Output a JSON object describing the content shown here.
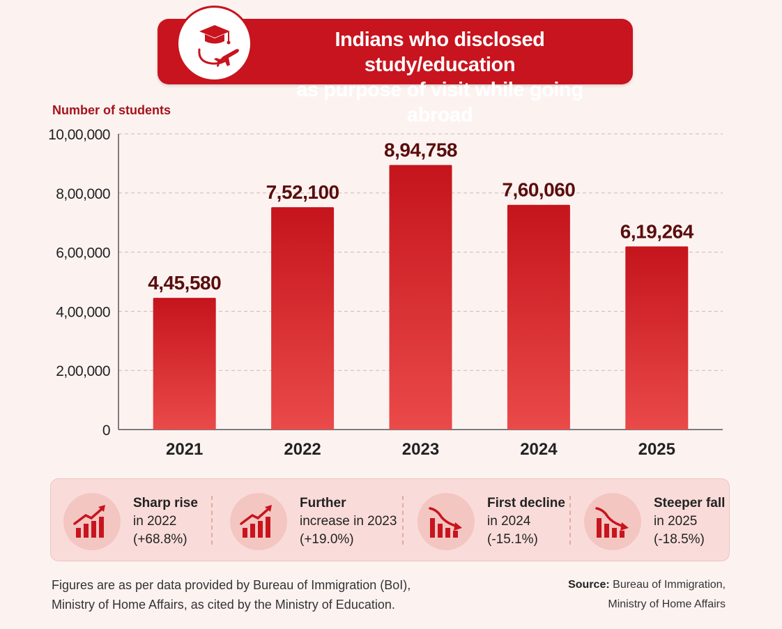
{
  "header": {
    "title_line1": "Indians who disclosed study/education",
    "title_line2": "as purpose of visit while going abroad",
    "icon": "graduation-cap-airplane-icon"
  },
  "chart_data": {
    "type": "bar",
    "ylabel": "Number of students",
    "xlabel": "",
    "categories": [
      "2021",
      "2022",
      "2023",
      "2024",
      "2025"
    ],
    "values": [
      445580,
      752100,
      894758,
      760060,
      619264
    ],
    "value_labels": [
      "4,45,580",
      "7,52,100",
      "8,94,758",
      "7,60,060",
      "6,19,264"
    ],
    "ylim": [
      0,
      1000000
    ],
    "yticks": [
      0,
      200000,
      400000,
      600000,
      800000,
      1000000
    ],
    "ytick_labels": [
      "0",
      "2,00,000",
      "4,00,000",
      "6,00,000",
      "8,00,000",
      "10,00,000"
    ],
    "grid": true,
    "colors": {
      "bar_top": "#c5141c",
      "bar_bottom": "#ea4a49",
      "label": "#5a0d0d",
      "ylabel": "#a5121a"
    }
  },
  "highlights": [
    {
      "title": "Sharp rise",
      "line2": "in 2022",
      "line3": "(+68.8%)",
      "icon": "trend-up-chart-icon"
    },
    {
      "title": "Further",
      "line2": "increase in 2023",
      "line3": "(+19.0%)",
      "icon": "trend-up-chart-icon"
    },
    {
      "title": "First decline",
      "line2": "in 2024",
      "line3": "(-15.1%)",
      "icon": "trend-down-chart-icon"
    },
    {
      "title": "Steeper fall",
      "line2": "in 2025",
      "line3": "(-18.5%)",
      "icon": "trend-down-chart-icon"
    }
  ],
  "footnote": {
    "line1": "Figures are as per data provided by Bureau of Immigration (BoI),",
    "line2": "Ministry of Home Affairs, as cited by the Ministry of Education."
  },
  "source": {
    "label": "Source:",
    "line1": "Bureau of Immigration,",
    "line2": "Ministry of Home Affairs"
  }
}
